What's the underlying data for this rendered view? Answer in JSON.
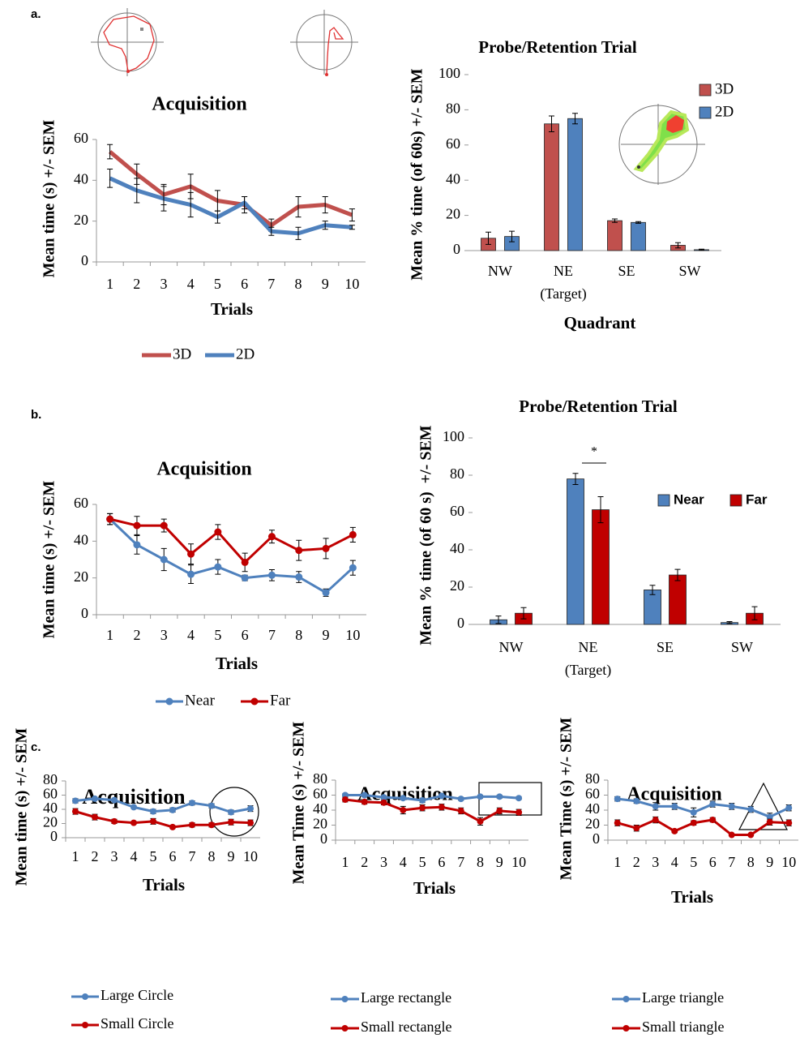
{
  "panel_labels": [
    "a.",
    "b.",
    "c."
  ],
  "chart_data": [
    {
      "type": "line",
      "title": "Acquisition",
      "y_label": "Mean time (s) +/- SEM",
      "x_label": "Trials",
      "categories": [
        "1",
        "2",
        "3",
        "4",
        "5",
        "6",
        "7",
        "8",
        "9",
        "10"
      ],
      "ylim": [
        0,
        60
      ],
      "yticks": [
        0,
        20,
        40,
        60
      ],
      "markers": false,
      "grid": false,
      "series": [
        {
          "name": "3D",
          "color": "#c0504d",
          "values": [
            54,
            43,
            33,
            37,
            30,
            28,
            18,
            27,
            28,
            23
          ],
          "errors": [
            3.5,
            5,
            5,
            6,
            5,
            4,
            3,
            5,
            4,
            3
          ]
        },
        {
          "name": "2D",
          "color": "#4f81bd",
          "values": [
            41,
            35,
            31,
            28,
            22,
            29,
            15,
            14,
            18,
            17
          ],
          "errors": [
            4.5,
            6,
            6,
            6,
            3,
            3,
            2,
            3,
            2,
            1
          ]
        }
      ]
    },
    {
      "type": "bar",
      "title": "Probe/Retention Trial",
      "y_label": "Mean % time (of 60s) +/- SEM",
      "x_label": "Quadrant",
      "categories": [
        "NW",
        "NE",
        "SE",
        "SW"
      ],
      "category_sublabels": [
        null,
        "(Target)",
        null,
        null
      ],
      "ylim": [
        0,
        100
      ],
      "yticks": [
        0,
        20,
        40,
        60,
        80,
        100
      ],
      "grid": false,
      "series": [
        {
          "name": "3D",
          "color": "#c0504d",
          "values": [
            7,
            72,
            17,
            3
          ],
          "errors": [
            3.5,
            4.5,
            1,
            1.5
          ]
        },
        {
          "name": "2D",
          "color": "#4f81bd",
          "values": [
            8,
            75,
            16,
            0.5
          ],
          "errors": [
            3,
            3,
            0.5,
            0.3
          ]
        }
      ]
    },
    {
      "type": "line",
      "title": "Acquisition",
      "y_label": "Mean time (s) +/- SEM",
      "x_label": "Trials",
      "categories": [
        "1",
        "2",
        "3",
        "4",
        "5",
        "6",
        "7",
        "8",
        "9",
        "10"
      ],
      "ylim": [
        0,
        60
      ],
      "yticks": [
        0,
        20,
        40,
        60
      ],
      "markers": true,
      "grid": false,
      "series": [
        {
          "name": "Near",
          "color": "#4f81bd",
          "values": [
            52,
            38,
            30,
            22,
            26,
            20,
            21.5,
            20.5,
            12,
            25.5
          ],
          "errors": [
            3,
            5,
            6,
            5,
            4,
            1.5,
            3,
            3,
            2,
            4
          ]
        },
        {
          "name": "Far",
          "color": "#c00000",
          "values": [
            52,
            48.5,
            48.5,
            33,
            45,
            28.5,
            42.5,
            35,
            36,
            43.5
          ],
          "errors": [
            3,
            5,
            3.5,
            5.5,
            4,
            5,
            3.5,
            5.5,
            5.5,
            4
          ]
        }
      ]
    },
    {
      "type": "bar",
      "title": "Probe/Retention Trial",
      "y_label": "Mean % time (of 60 s)  +/- SEM",
      "annotation": "*",
      "categories": [
        "NW",
        "NE",
        "SE",
        "SW"
      ],
      "category_sublabels": [
        null,
        "(Target)",
        null,
        null
      ],
      "ylim": [
        0,
        100
      ],
      "yticks": [
        0,
        20,
        40,
        60,
        80,
        100
      ],
      "grid": false,
      "series": [
        {
          "name": "Near",
          "color": "#4f81bd",
          "values": [
            2.5,
            78,
            18.5,
            1
          ],
          "errors": [
            2,
            3,
            2.5,
            0.5
          ]
        },
        {
          "name": "Far",
          "color": "#c00000",
          "values": [
            6,
            61.5,
            26.5,
            6
          ],
          "errors": [
            3,
            7,
            3,
            3.5
          ]
        }
      ]
    },
    {
      "type": "line",
      "title": "Acquisition",
      "y_label": "Mean time (s) +/- SEM",
      "x_label": "Trials",
      "categories": [
        "1",
        "2",
        "3",
        "4",
        "5",
        "6",
        "7",
        "8",
        "9",
        "10"
      ],
      "ylim": [
        0,
        80
      ],
      "yticks": [
        0,
        20,
        40,
        60,
        80
      ],
      "markers": true,
      "grid": false,
      "series": [
        {
          "name": "Large Circle",
          "color": "#4f81bd",
          "values": [
            52,
            55,
            53,
            43,
            37,
            39,
            49,
            45,
            36,
            41
          ],
          "errors": [
            3,
            2,
            2,
            2,
            3,
            3,
            3,
            3,
            3,
            4
          ]
        },
        {
          "name": "Small Circle",
          "color": "#c00000",
          "values": [
            37,
            29,
            23,
            21,
            23,
            15,
            18,
            18,
            22,
            21
          ],
          "errors": [
            4,
            4,
            3,
            2,
            4,
            2,
            3,
            3,
            4,
            4
          ]
        }
      ]
    },
    {
      "type": "line",
      "title": "Acquisition",
      "y_label": "Mean Time (s) +/- SEM",
      "x_label": "Trials",
      "categories": [
        "1",
        "2",
        "3",
        "4",
        "5",
        "6",
        "7",
        "8",
        "9",
        "10"
      ],
      "ylim": [
        0,
        80
      ],
      "yticks": [
        0,
        20,
        40,
        60,
        80
      ],
      "markers": true,
      "grid": false,
      "series": [
        {
          "name": "Large rectangle",
          "color": "#4f81bd",
          "values": [
            60,
            60,
            57,
            56,
            53,
            59,
            55,
            58,
            58,
            56
          ],
          "errors": [
            2,
            2,
            2,
            2,
            3,
            2,
            2,
            2,
            2,
            2
          ]
        },
        {
          "name": "Small rectangle",
          "color": "#c00000",
          "values": [
            54,
            51,
            50,
            40,
            43,
            44,
            39,
            25,
            39,
            37
          ],
          "errors": [
            3,
            3,
            3,
            5,
            4,
            4,
            4,
            5,
            4,
            4
          ]
        }
      ]
    },
    {
      "type": "line",
      "title": "Acquisition",
      "y_label": "Mean Time (s) +/- SEM",
      "x_label": "Trials",
      "categories": [
        "1",
        "2",
        "3",
        "4",
        "5",
        "6",
        "7",
        "8",
        "9",
        "10"
      ],
      "ylim": [
        0,
        80
      ],
      "yticks": [
        0,
        20,
        40,
        60,
        80
      ],
      "markers": true,
      "grid": false,
      "series": [
        {
          "name": "Large triangle",
          "color": "#4f81bd",
          "values": [
            55,
            52,
            45,
            45,
            37,
            48,
            45,
            41,
            31,
            43
          ],
          "errors": [
            3,
            3,
            5,
            4,
            6,
            4,
            4,
            4,
            5,
            4
          ]
        },
        {
          "name": "Small triangle",
          "color": "#c00000",
          "values": [
            23,
            16,
            27,
            12,
            23,
            27,
            7,
            7,
            24,
            23
          ],
          "errors": [
            4,
            4,
            4,
            2,
            3,
            3,
            1,
            1,
            4,
            4
          ]
        }
      ]
    }
  ]
}
